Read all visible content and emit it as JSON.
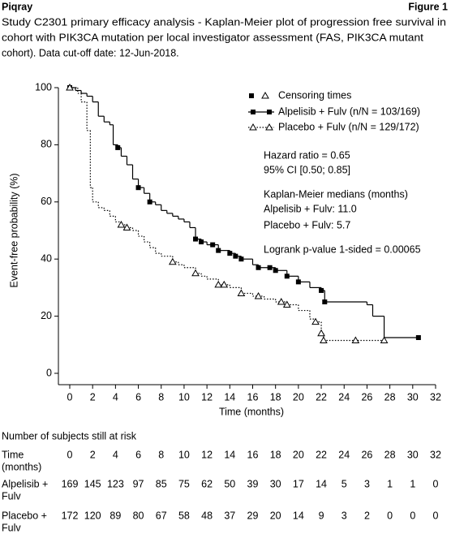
{
  "header": {
    "left": "Piqray",
    "right": "Figure 1",
    "lines": [
      "Study C2301 primary efficacy analysis - Kaplan-Meier plot of progression free survival in",
      "cohort with PIK3CA mutation per local investigator assessment (FAS, PIK3CA mutant",
      "cohort). Data cut-off date: 12-Jun-2018."
    ]
  },
  "chart_data": {
    "type": "step",
    "xlabel": "Time (months)",
    "ylabel": "Event-free probability (%)",
    "xlim": [
      -0.5,
      32
    ],
    "ylim": [
      -3,
      100
    ],
    "xticks": [
      0,
      2,
      4,
      6,
      8,
      10,
      12,
      14,
      16,
      18,
      20,
      22,
      24,
      26,
      28,
      30,
      32
    ],
    "yticks": [
      0,
      20,
      40,
      60,
      80,
      100
    ],
    "legend_censor": "Censoring times",
    "series": [
      {
        "name": "Alpelisib + Fulv (n/N = 103/169)",
        "color": "#000000",
        "dash": "none",
        "marker": "square",
        "x": [
          0,
          0.5,
          1,
          1.5,
          2,
          2.5,
          3,
          3.5,
          3.8,
          4.2,
          4.5,
          5,
          5.5,
          6,
          6.5,
          7,
          7.5,
          8,
          8.5,
          9,
          9.5,
          10,
          10.5,
          11,
          11.5,
          12,
          13,
          14,
          14.5,
          15,
          16,
          16.5,
          18,
          19,
          20,
          21,
          22,
          22.3,
          26,
          26.5,
          27.5,
          30.5
        ],
        "values": [
          100,
          99,
          98,
          97,
          95,
          90,
          88,
          87,
          80,
          79,
          76,
          73,
          68,
          65,
          63,
          60,
          59,
          57,
          56,
          55,
          54,
          53,
          51,
          47,
          46,
          45,
          43,
          42,
          41,
          40,
          38,
          37,
          36,
          34,
          32,
          30,
          29,
          25,
          24,
          20,
          12.5,
          12.5
        ],
        "censor_x": [
          0,
          4.2,
          6,
          7,
          11,
          11.5,
          12.5,
          13,
          14,
          14.5,
          15,
          16.5,
          17.5,
          18,
          19,
          20,
          22,
          22.3,
          30.5
        ]
      },
      {
        "name": "Placebo + Fulv (n/N = 129/172)",
        "color": "#000000",
        "dash": "1.5,2",
        "marker": "triangle",
        "x": [
          0,
          0.7,
          1,
          1.5,
          1.8,
          2,
          2.5,
          3,
          3.5,
          4,
          4.5,
          5,
          5.5,
          6,
          6.5,
          7,
          7.5,
          8,
          9,
          9.5,
          10,
          11,
          11.5,
          12,
          13,
          14,
          15,
          16,
          17,
          18,
          19,
          20,
          21,
          21.5,
          22,
          22.2,
          27.5
        ],
        "values": [
          100,
          98,
          95,
          85,
          65,
          60,
          58,
          57,
          55,
          53,
          52,
          51,
          50,
          48,
          46,
          44,
          42,
          41,
          39,
          38,
          37,
          35,
          34,
          33,
          31,
          30,
          28,
          27,
          26,
          25,
          24,
          22,
          19,
          18,
          14,
          11.5,
          11.5
        ],
        "censor_x": [
          0,
          4.5,
          5,
          9,
          11,
          13,
          13.5,
          15,
          16.5,
          18.5,
          19,
          21.5,
          22,
          22.2,
          25,
          27.5
        ]
      }
    ],
    "annotations": [
      "Hazard ratio = 0.65",
      "95% CI [0.50; 0.85]",
      "Kaplan-Meier medians (months)",
      "Alpelisib + Fulv: 11.0",
      "Placebo + Fulv: 5.7",
      "Logrank p-value 1-sided = 0.00065"
    ]
  },
  "risk_table": {
    "title": "Number of subjects still at risk",
    "rows": [
      {
        "label": [
          "Time",
          "(months)"
        ],
        "values": [
          "0",
          "2",
          "4",
          "6",
          "8",
          "10",
          "12",
          "14",
          "16",
          "18",
          "20",
          "22",
          "24",
          "26",
          "28",
          "30",
          "32"
        ]
      },
      {
        "label": [
          "Alpelisib +",
          "Fulv"
        ],
        "values": [
          "169",
          "145",
          "123",
          "97",
          "85",
          "75",
          "62",
          "50",
          "39",
          "30",
          "17",
          "14",
          "5",
          "3",
          "1",
          "1",
          "0"
        ]
      },
      {
        "label": [
          "Placebo +",
          "Fulv"
        ],
        "values": [
          "172",
          "120",
          "89",
          "80",
          "67",
          "58",
          "48",
          "37",
          "29",
          "20",
          "14",
          "9",
          "3",
          "2",
          "0",
          "0",
          "0"
        ]
      }
    ]
  }
}
